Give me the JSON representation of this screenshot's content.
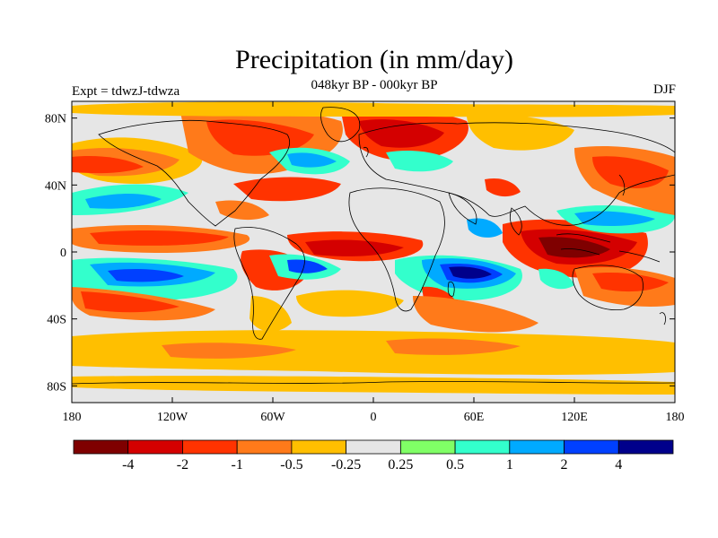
{
  "header": {
    "title": "Precipitation (in mm/day)",
    "subtitle": "048kyr BP - 000kyr BP",
    "left_label": "Expt = tdwzJ-tdwza",
    "right_label": "DJF"
  },
  "map": {
    "projection": "cylindrical-equidistant",
    "lon_range": [
      -180,
      180
    ],
    "lat_range": [
      -90,
      90
    ],
    "lon_ticks": [
      {
        "value": -180,
        "label": "180"
      },
      {
        "value": -120,
        "label": "120W"
      },
      {
        "value": -60,
        "label": "60W"
      },
      {
        "value": 0,
        "label": "0"
      },
      {
        "value": 60,
        "label": "60E"
      },
      {
        "value": 120,
        "label": "120E"
      },
      {
        "value": 180,
        "label": "180"
      }
    ],
    "lat_ticks": [
      {
        "value": 80,
        "label": "80N"
      },
      {
        "value": 40,
        "label": "40N"
      },
      {
        "value": 0,
        "label": "0"
      },
      {
        "value": -40,
        "label": "40S"
      },
      {
        "value": -80,
        "label": "80S"
      }
    ],
    "background_color": "#e6e6e6",
    "coastline_color": "#000000"
  },
  "colorbar": {
    "levels": [
      "-4",
      "-2",
      "-1",
      "-0.5",
      "-0.25",
      "0.25",
      "0.5",
      "1",
      "2",
      "4"
    ],
    "colors": [
      "#7f0000",
      "#d40000",
      "#ff3300",
      "#ff7a1a",
      "#ffbf00",
      "#e6e6e6",
      "#80ff66",
      "#33ffcc",
      "#00aaff",
      "#0040ff",
      "#00008b"
    ]
  }
}
